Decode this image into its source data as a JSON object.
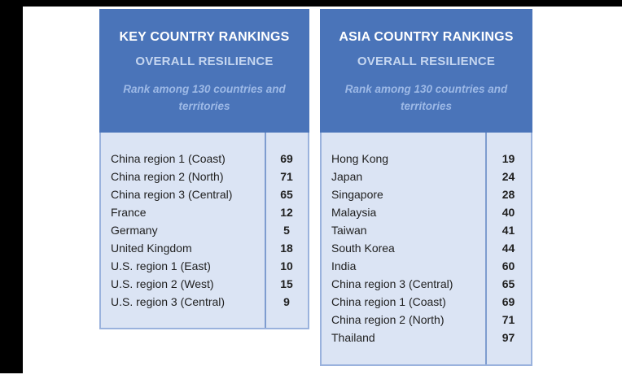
{
  "colors": {
    "frame_bars": "#000000",
    "header_background": "#4a74b9",
    "body_background": "#dbe4f4",
    "table_border": "#9ab2dd",
    "column_divider": "#7e9ccf",
    "title_text": "#ffffff",
    "subtitle_text": "#c5d6f0",
    "note_text": "#9db9e6",
    "row_text": "#1f1f1f"
  },
  "chart_data": [
    {
      "type": "table",
      "title": "KEY COUNTRY RANKINGS",
      "subtitle": "OVERALL RESILIENCE",
      "note": "Rank among 130 countries and territories",
      "rows": [
        [
          "China region 1 (Coast)",
          69
        ],
        [
          "China region 2 (North)",
          71
        ],
        [
          "China region 3 (Central)",
          65
        ],
        [
          "France",
          12
        ],
        [
          "Germany",
          5
        ],
        [
          "United Kingdom",
          18
        ],
        [
          "U.S. region 1 (East)",
          10
        ],
        [
          "U.S. region 2 (West)",
          15
        ],
        [
          "U.S. region 3 (Central)",
          9
        ]
      ]
    },
    {
      "type": "table",
      "title": "ASIA COUNTRY RANKINGS",
      "subtitle": "OVERALL RESILIENCE",
      "note": "Rank among 130 countries and territories",
      "rows": [
        [
          "Hong Kong",
          19
        ],
        [
          "Japan",
          24
        ],
        [
          "Singapore",
          28
        ],
        [
          "Malaysia",
          40
        ],
        [
          "Taiwan",
          41
        ],
        [
          "South Korea",
          44
        ],
        [
          "India",
          60
        ],
        [
          "China region 3 (Central)",
          65
        ],
        [
          "China region 1 (Coast)",
          69
        ],
        [
          "China region 2 (North)",
          71
        ],
        [
          "Thailand",
          97
        ]
      ]
    }
  ]
}
